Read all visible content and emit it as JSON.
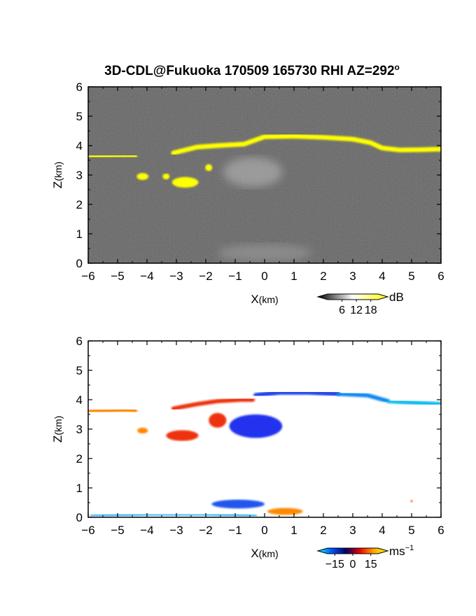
{
  "figure": {
    "title_main": "3D-CDL@Fukuoka 170509 165730 RHI AZ=292",
    "title_degree": "o"
  },
  "chart_data": [
    {
      "type": "heatmap",
      "panel": "top",
      "quantity": "backscatter",
      "xlabel_main": "X",
      "xlabel_unit": "(km)",
      "ylabel_main": "Z",
      "ylabel_unit": "(km)",
      "xlim": [
        -6,
        6
      ],
      "ylim": [
        0,
        6
      ],
      "xticks": [
        -6,
        -5,
        -4,
        -3,
        -2,
        -1,
        0,
        1,
        2,
        3,
        4,
        5,
        6
      ],
      "yticks": [
        0,
        1,
        2,
        3,
        4,
        5,
        6
      ],
      "background_color": "#2a2a2a",
      "features": [
        {
          "kind": "layer",
          "color": "#ffff00",
          "points": [
            [
              -6.0,
              3.62
            ],
            [
              -4.8,
              3.66
            ],
            [
              -4.4,
              3.65
            ]
          ],
          "thickness": 0.14
        },
        {
          "kind": "layer",
          "color": "#ffff00",
          "points": [
            [
              -3.1,
              3.75
            ],
            [
              -2.3,
              3.95
            ],
            [
              -1.6,
              4.0
            ],
            [
              -0.7,
              4.05
            ],
            [
              0.0,
              4.3
            ],
            [
              1.0,
              4.32
            ],
            [
              2.0,
              4.28
            ],
            [
              3.0,
              4.22
            ],
            [
              3.6,
              4.1
            ],
            [
              4.0,
              3.92
            ],
            [
              4.6,
              3.85
            ],
            [
              5.3,
              3.86
            ],
            [
              6.0,
              3.88
            ]
          ],
          "thickness": 0.16
        },
        {
          "kind": "blob",
          "color": "#ffff00",
          "cx": -2.7,
          "cy": 2.75,
          "rx": 0.45,
          "ry": 0.18
        },
        {
          "kind": "blob",
          "color": "#ffff00",
          "cx": -4.15,
          "cy": 2.95,
          "rx": 0.2,
          "ry": 0.12
        },
        {
          "kind": "blob",
          "color": "#ffff00",
          "cx": -3.35,
          "cy": 2.95,
          "rx": 0.12,
          "ry": 0.1
        },
        {
          "kind": "blob",
          "color": "#ffff00",
          "cx": -1.9,
          "cy": 3.25,
          "rx": 0.12,
          "ry": 0.12
        },
        {
          "kind": "blob",
          "color": "#bdbdbd",
          "cx": -0.4,
          "cy": 3.1,
          "rx": 1.0,
          "ry": 0.5
        },
        {
          "kind": "blob",
          "color": "#a0a0a0",
          "cx": 0.0,
          "cy": 0.35,
          "rx": 1.6,
          "ry": 0.3
        }
      ],
      "colorbar": {
        "unit": "dB",
        "ticks": [
          "6",
          "12",
          "18"
        ],
        "colors": [
          "#000000",
          "#ffffff",
          "#ffff00"
        ],
        "range": [
          0,
          21
        ]
      }
    },
    {
      "type": "heatmap",
      "panel": "bottom",
      "quantity": "velocity",
      "xlabel_main": "X",
      "xlabel_unit": "(km)",
      "ylabel_main": "Z",
      "ylabel_unit": "(km)",
      "xlim": [
        -6,
        6
      ],
      "ylim": [
        0,
        6
      ],
      "xticks": [
        -6,
        -5,
        -4,
        -3,
        -2,
        -1,
        0,
        1,
        2,
        3,
        4,
        5,
        6
      ],
      "yticks": [
        0,
        1,
        2,
        3,
        4,
        5,
        6
      ],
      "background_color": "#ffffff",
      "features": [
        {
          "kind": "layer",
          "color": "#ff8800",
          "points": [
            [
              -6.0,
              3.6
            ],
            [
              -5.4,
              3.62
            ],
            [
              -4.8,
              3.65
            ],
            [
              -4.4,
              3.62
            ]
          ],
          "thickness": 0.14
        },
        {
          "kind": "layer",
          "color": "#ee3311",
          "points": [
            [
              -3.1,
              3.7
            ],
            [
              -2.3,
              3.85
            ],
            [
              -1.6,
              3.95
            ],
            [
              -0.8,
              4.0
            ],
            [
              -0.4,
              4.0
            ]
          ],
          "thickness": 0.14
        },
        {
          "kind": "layer",
          "color": "#2244ee",
          "points": [
            [
              -0.3,
              4.15
            ],
            [
              0.5,
              4.25
            ],
            [
              1.5,
              4.25
            ],
            [
              2.5,
              4.2
            ]
          ],
          "thickness": 0.16
        },
        {
          "kind": "layer",
          "color": "#1188ee",
          "points": [
            [
              2.5,
              4.2
            ],
            [
              3.5,
              4.15
            ],
            [
              4.2,
              3.95
            ]
          ],
          "thickness": 0.14
        },
        {
          "kind": "layer",
          "color": "#11bbee",
          "points": [
            [
              4.2,
              3.95
            ],
            [
              5.0,
              3.9
            ],
            [
              6.0,
              3.85
            ]
          ],
          "thickness": 0.14
        },
        {
          "kind": "blob",
          "color": "#ee3311",
          "cx": -2.8,
          "cy": 2.78,
          "rx": 0.55,
          "ry": 0.18
        },
        {
          "kind": "blob",
          "color": "#ff8800",
          "cx": -4.15,
          "cy": 2.95,
          "rx": 0.18,
          "ry": 0.1
        },
        {
          "kind": "blob",
          "color": "#ee3311",
          "cx": -1.6,
          "cy": 3.3,
          "rx": 0.3,
          "ry": 0.25
        },
        {
          "kind": "blob",
          "color": "#2233ee",
          "cx": -0.3,
          "cy": 3.1,
          "rx": 0.9,
          "ry": 0.4
        },
        {
          "kind": "blob",
          "color": "#2255ee",
          "cx": -0.9,
          "cy": 0.45,
          "rx": 0.9,
          "ry": 0.15
        },
        {
          "kind": "layer",
          "color": "#22aaee",
          "points": [
            [
              -5.9,
              0.05
            ],
            [
              -4.0,
              0.1
            ],
            [
              -2.0,
              0.1
            ],
            [
              -0.3,
              0.05
            ]
          ],
          "thickness": 0.08
        },
        {
          "kind": "blob",
          "color": "#ff8800",
          "cx": 0.7,
          "cy": 0.2,
          "rx": 0.6,
          "ry": 0.12
        },
        {
          "kind": "blob",
          "color": "#ff5500",
          "cx": 5.0,
          "cy": 0.55,
          "rx": 0.04,
          "ry": 0.04
        }
      ],
      "colorbar": {
        "unit": "ms",
        "unit_exponent": "−1",
        "ticks": [
          "−15",
          "0",
          "15"
        ],
        "colors": [
          "#00ffff",
          "#0055ff",
          "#000066",
          "#ee0000",
          "#ffaa00",
          "#ffff00"
        ],
        "range": [
          -21,
          21
        ]
      }
    }
  ]
}
